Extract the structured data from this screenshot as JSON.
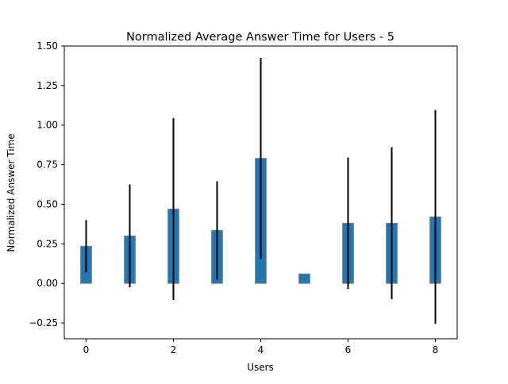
{
  "chart_data": {
    "type": "bar",
    "title": "Normalized Average Answer Time for Users - 5",
    "xlabel": "Users",
    "ylabel": "Normalized Answer Time",
    "x": [
      0,
      1,
      2,
      3,
      4,
      5,
      6,
      7,
      8
    ],
    "values": [
      0.235,
      0.3,
      0.47,
      0.335,
      0.79,
      0.06,
      0.38,
      0.38,
      0.42
    ],
    "errors": [
      0.165,
      0.325,
      0.575,
      0.31,
      0.635,
      0.0,
      0.415,
      0.48,
      0.675
    ],
    "xlim": [
      -0.5,
      8.5
    ],
    "ylim": [
      -0.35,
      1.5
    ],
    "xticks": [
      0,
      2,
      4,
      6,
      8
    ],
    "xtick_labels": [
      "0",
      "2",
      "4",
      "6",
      "8"
    ],
    "yticks": [
      -0.25,
      0.0,
      0.25,
      0.5,
      0.75,
      1.0,
      1.25,
      1.5
    ],
    "ytick_labels": [
      "−0.25",
      "0.00",
      "0.25",
      "0.50",
      "0.75",
      "1.00",
      "1.25",
      "1.50"
    ],
    "grid": false,
    "colors": {
      "bar": "#1f77b4",
      "bar_edge": "#808080",
      "error": "#000000"
    }
  }
}
